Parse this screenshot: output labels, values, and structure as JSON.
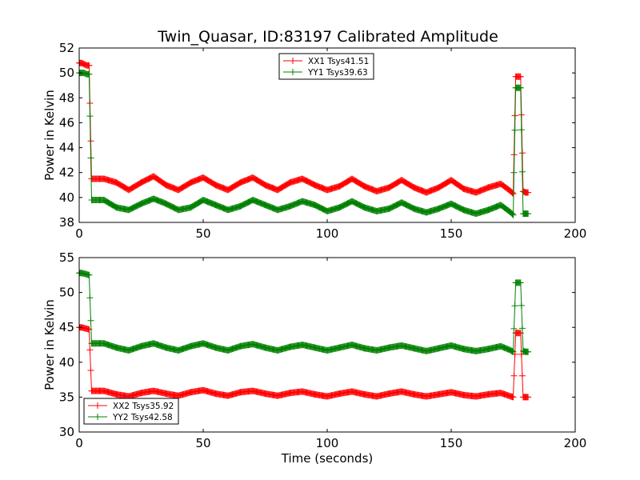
{
  "title": "Twin_Quasar, ID:83197 Calibrated Amplitude",
  "colors": {
    "red": "#ff0000",
    "green": "#008000",
    "axis": "#000000",
    "background": "#ffffff"
  },
  "chart_data": [
    {
      "type": "line",
      "title": "Twin_Quasar, ID:83197 Calibrated Amplitude",
      "xlabel": "",
      "ylabel": "Power in Kelvin",
      "xlim": [
        0,
        200
      ],
      "ylim": [
        38,
        52
      ],
      "xticks": [
        "0",
        "50",
        "100",
        "150",
        "200"
      ],
      "yticks": [
        "38",
        "40",
        "42",
        "44",
        "46",
        "48",
        "50",
        "52"
      ],
      "grid": false,
      "legend_position": "upper-center",
      "series": [
        {
          "name": "XX1 Tsys41.51",
          "color": "#ff0000",
          "marker": "+",
          "x": [
            0,
            1,
            2,
            3,
            4,
            5,
            10,
            15,
            20,
            25,
            30,
            35,
            40,
            45,
            50,
            55,
            60,
            65,
            70,
            75,
            80,
            85,
            90,
            95,
            100,
            105,
            110,
            115,
            120,
            125,
            130,
            135,
            140,
            145,
            150,
            155,
            160,
            165,
            170,
            174,
            175,
            176,
            177,
            178,
            179,
            180,
            181
          ],
          "y": [
            50.8,
            50.8,
            50.7,
            50.6,
            50.6,
            41.5,
            41.5,
            41.2,
            40.6,
            41.2,
            41.7,
            41.0,
            40.6,
            41.2,
            41.6,
            41.0,
            40.6,
            41.2,
            41.6,
            41.0,
            40.6,
            41.2,
            41.5,
            41.0,
            40.6,
            40.9,
            41.5,
            40.9,
            40.5,
            40.8,
            41.4,
            40.8,
            40.4,
            40.8,
            41.4,
            40.7,
            40.4,
            40.8,
            41.1,
            40.5,
            40.3,
            49.7,
            49.7,
            49.7,
            40.5,
            40.4,
            40.4
          ]
        },
        {
          "name": "YY1 Tsys39.63",
          "color": "#008000",
          "marker": "+",
          "x": [
            0,
            1,
            2,
            3,
            4,
            5,
            10,
            15,
            20,
            25,
            30,
            35,
            40,
            45,
            50,
            55,
            60,
            65,
            70,
            75,
            80,
            85,
            90,
            95,
            100,
            105,
            110,
            115,
            120,
            125,
            130,
            135,
            140,
            145,
            150,
            155,
            160,
            165,
            170,
            174,
            175,
            176,
            177,
            178,
            179,
            180,
            181
          ],
          "y": [
            50.0,
            50.0,
            50.0,
            49.9,
            49.9,
            39.8,
            39.8,
            39.2,
            39.0,
            39.5,
            39.9,
            39.5,
            39.0,
            39.2,
            39.8,
            39.4,
            39.0,
            39.3,
            39.8,
            39.4,
            39.0,
            39.3,
            39.7,
            39.4,
            38.9,
            39.2,
            39.7,
            39.2,
            38.9,
            39.1,
            39.6,
            39.1,
            38.8,
            39.1,
            39.5,
            39.0,
            38.7,
            39.0,
            39.4,
            38.8,
            38.6,
            48.8,
            48.8,
            48.8,
            38.7,
            38.7,
            38.7
          ]
        }
      ]
    },
    {
      "type": "line",
      "title": "",
      "xlabel": "Time (seconds)",
      "ylabel": "Power in Kelvin",
      "xlim": [
        0,
        200
      ],
      "ylim": [
        30,
        55
      ],
      "xticks": [
        "0",
        "50",
        "100",
        "150",
        "200"
      ],
      "yticks": [
        "30",
        "35",
        "40",
        "45",
        "50",
        "55"
      ],
      "grid": false,
      "legend_position": "lower-left",
      "series": [
        {
          "name": "XX2 Tsys35.92",
          "color": "#ff0000",
          "marker": "+",
          "x": [
            0,
            1,
            2,
            3,
            4,
            5,
            10,
            15,
            20,
            25,
            30,
            35,
            40,
            45,
            50,
            55,
            60,
            65,
            70,
            75,
            80,
            85,
            90,
            95,
            100,
            105,
            110,
            115,
            120,
            125,
            130,
            135,
            140,
            145,
            150,
            155,
            160,
            165,
            170,
            174,
            175,
            176,
            177,
            178,
            179,
            180,
            181
          ],
          "y": [
            45.0,
            45.0,
            44.9,
            44.8,
            44.7,
            35.9,
            35.9,
            35.4,
            35.1,
            35.6,
            35.9,
            35.5,
            35.2,
            35.7,
            36.0,
            35.5,
            35.2,
            35.7,
            35.9,
            35.5,
            35.2,
            35.6,
            35.8,
            35.4,
            35.1,
            35.5,
            35.8,
            35.4,
            35.1,
            35.5,
            35.8,
            35.4,
            35.1,
            35.4,
            35.7,
            35.3,
            35.1,
            35.4,
            35.6,
            35.1,
            35.0,
            44.2,
            44.2,
            44.2,
            35.0,
            35.0,
            35.0
          ]
        },
        {
          "name": "YY2 Tsys42.58",
          "color": "#008000",
          "marker": "+",
          "x": [
            0,
            1,
            2,
            3,
            4,
            5,
            10,
            15,
            20,
            25,
            30,
            35,
            40,
            45,
            50,
            55,
            60,
            65,
            70,
            75,
            80,
            85,
            90,
            95,
            100,
            105,
            110,
            115,
            120,
            125,
            130,
            135,
            140,
            145,
            150,
            155,
            160,
            165,
            170,
            174,
            175,
            176,
            177,
            178,
            179,
            180,
            181
          ],
          "y": [
            52.8,
            52.8,
            52.7,
            52.6,
            52.5,
            42.7,
            42.7,
            42.1,
            41.7,
            42.3,
            42.7,
            42.1,
            41.7,
            42.3,
            42.7,
            42.1,
            41.7,
            42.3,
            42.6,
            42.1,
            41.7,
            42.2,
            42.5,
            42.1,
            41.7,
            42.1,
            42.5,
            42.0,
            41.7,
            42.1,
            42.4,
            42.0,
            41.6,
            42.0,
            42.4,
            41.9,
            41.6,
            41.9,
            42.3,
            41.7,
            41.5,
            51.4,
            51.4,
            51.4,
            41.6,
            41.5,
            41.5
          ]
        }
      ]
    }
  ]
}
